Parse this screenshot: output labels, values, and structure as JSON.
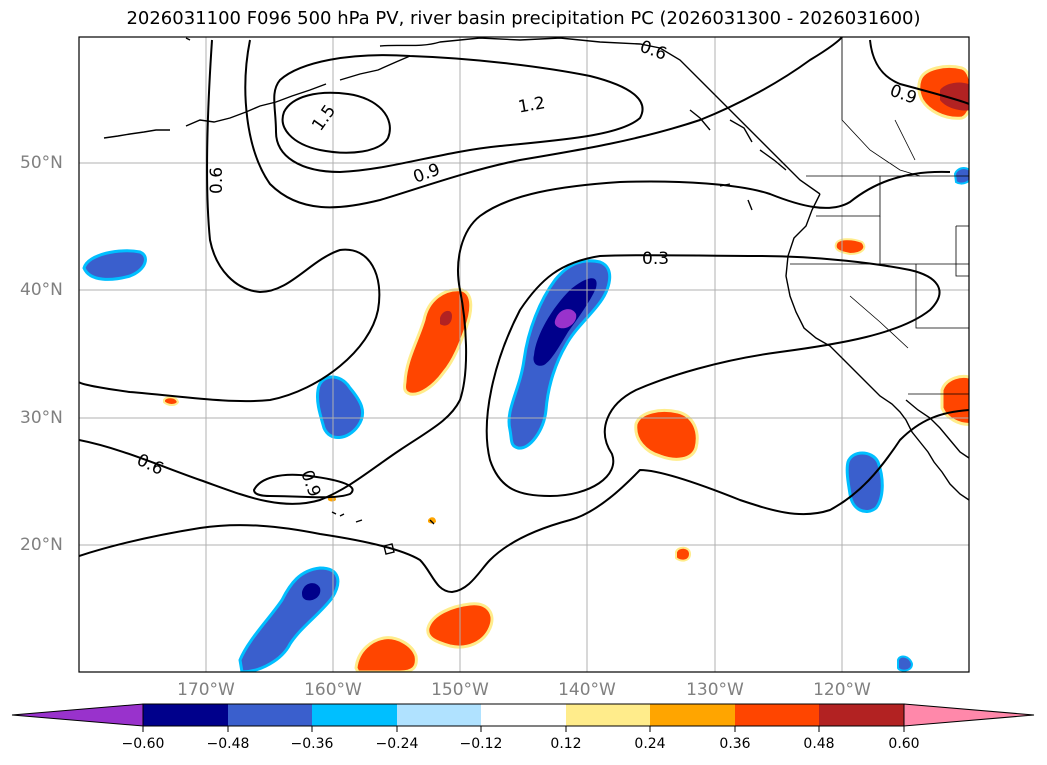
{
  "title": "2026031100 F096 500 hPa PV, river basin precipitation PC (2026031300 - 2026031600)",
  "map": {
    "lat_labels": [
      "50°N",
      "40°N",
      "30°N",
      "20°N"
    ],
    "lon_labels": [
      "170°W",
      "160°W",
      "150°W",
      "140°W",
      "130°W",
      "120°W"
    ],
    "contour_labels": [
      "1.5",
      "1.2",
      "0.9",
      "0.6",
      "0.3",
      "0.6",
      "0.9",
      "0.6",
      "0.9"
    ],
    "line_color": "#000000",
    "grid_color": "#b0b0b0"
  },
  "colorbar": {
    "colors": [
      "#9932cc",
      "#00008b",
      "#3a5fcd",
      "#00bfff",
      "#b0e2ff",
      "#ffffff",
      "#ffec8b",
      "#ffa500",
      "#ff4500",
      "#b22222",
      "#ff88aa"
    ],
    "tick_labels": [
      "−0.60",
      "−0.48",
      "−0.36",
      "−0.24",
      "−0.12",
      "0.12",
      "0.24",
      "0.36",
      "0.48",
      "0.60"
    ]
  }
}
